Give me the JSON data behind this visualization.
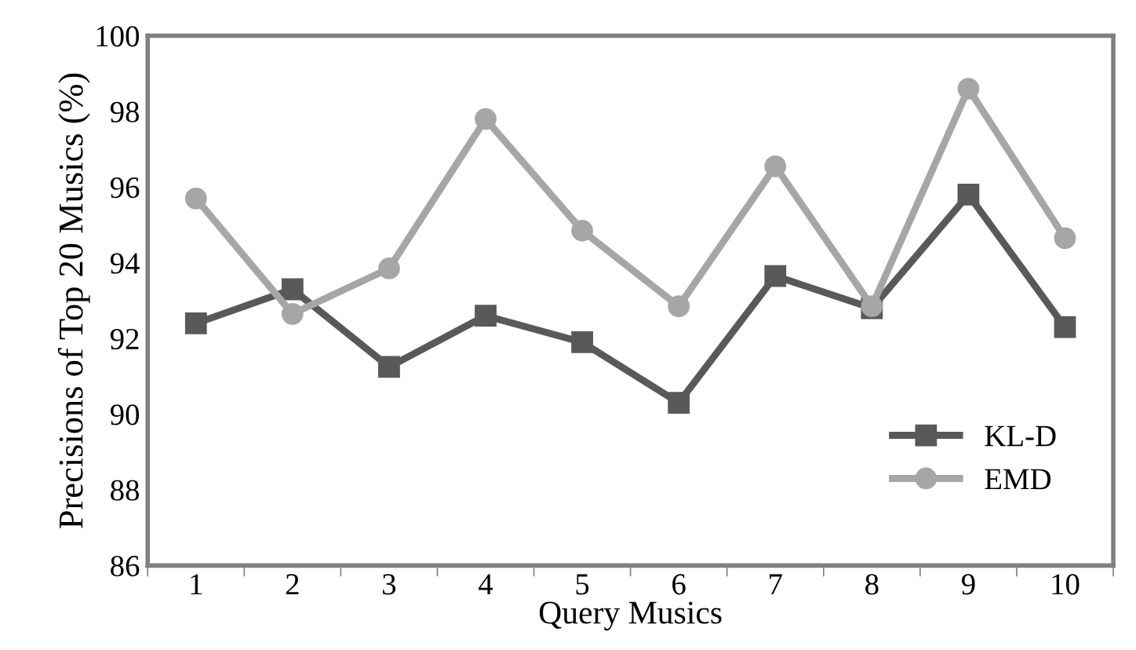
{
  "chart_data": {
    "type": "line",
    "xlabel": "Query Musics",
    "ylabel": "Precisions of Top 20 Musics (%)",
    "categories": [
      "1",
      "2",
      "3",
      "4",
      "5",
      "6",
      "7",
      "8",
      "9",
      "10"
    ],
    "series": [
      {
        "name": "KL-D",
        "color": "#595959",
        "marker": "square",
        "values": [
          92.4,
          93.3,
          91.25,
          92.6,
          91.9,
          90.3,
          93.65,
          92.8,
          95.8,
          92.3
        ]
      },
      {
        "name": "EMD",
        "color": "#a6a6a6",
        "marker": "circle",
        "values": [
          95.7,
          92.65,
          93.85,
          97.8,
          94.85,
          92.85,
          96.55,
          92.85,
          98.6,
          94.65
        ]
      }
    ],
    "ylim": [
      86,
      100
    ],
    "yticks": [
      86,
      88,
      90,
      92,
      94,
      96,
      98,
      100
    ],
    "grid": false,
    "legend": "bottom right",
    "line_style": "solid"
  }
}
